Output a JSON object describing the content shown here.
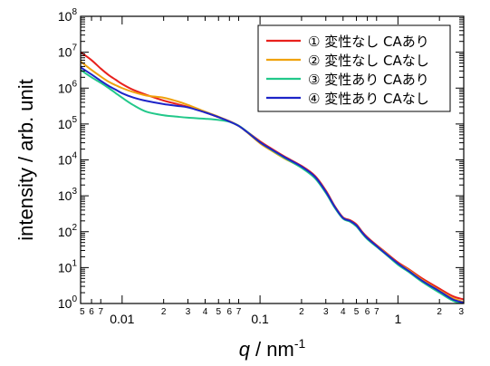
{
  "chart_data": {
    "type": "line",
    "xscale": "log",
    "yscale": "log",
    "xlim": [
      0.005,
      3
    ],
    "ylim": [
      1,
      100000000
    ],
    "grid": false,
    "legend_position": "top-right",
    "xlabel_italic": "q",
    "xlabel_rest": " / nm",
    "xlabel_sup": "-1",
    "ylabel": "intensity / arb. unit",
    "x_ticks_major": [
      {
        "value": 0.01,
        "label": "0.01"
      },
      {
        "value": 0.1,
        "label": "0.1"
      },
      {
        "value": 1,
        "label": "1"
      }
    ],
    "x_ticks_minor": [
      {
        "value": 0.005,
        "label": "5"
      },
      {
        "value": 0.006,
        "label": "6"
      },
      {
        "value": 0.007,
        "label": "7"
      },
      {
        "value": 0.02,
        "label": "2"
      },
      {
        "value": 0.03,
        "label": "3"
      },
      {
        "value": 0.04,
        "label": "4"
      },
      {
        "value": 0.05,
        "label": "5"
      },
      {
        "value": 0.06,
        "label": "6"
      },
      {
        "value": 0.07,
        "label": "7"
      },
      {
        "value": 0.2,
        "label": "2"
      },
      {
        "value": 0.3,
        "label": "3"
      },
      {
        "value": 0.4,
        "label": "4"
      },
      {
        "value": 0.5,
        "label": "5"
      },
      {
        "value": 0.6,
        "label": "6"
      },
      {
        "value": 0.7,
        "label": "7"
      },
      {
        "value": 2,
        "label": "2"
      },
      {
        "value": 3,
        "label": "3"
      }
    ],
    "y_ticks": [
      {
        "exp": 0,
        "base": "10",
        "sup": "0"
      },
      {
        "exp": 1,
        "base": "10",
        "sup": "1"
      },
      {
        "exp": 2,
        "base": "10",
        "sup": "2"
      },
      {
        "exp": 3,
        "base": "10",
        "sup": "3"
      },
      {
        "exp": 4,
        "base": "10",
        "sup": "4"
      },
      {
        "exp": 5,
        "base": "10",
        "sup": "5"
      },
      {
        "exp": 6,
        "base": "10",
        "sup": "6"
      },
      {
        "exp": 7,
        "base": "10",
        "sup": "7"
      },
      {
        "exp": 8,
        "base": "10",
        "sup": "8"
      }
    ],
    "series": [
      {
        "name": "① 変性なし CAあり",
        "color": "#e8211d",
        "x": [
          0.005,
          0.006,
          0.007,
          0.008,
          0.009,
          0.01,
          0.012,
          0.015,
          0.02,
          0.025,
          0.03,
          0.04,
          0.05,
          0.06,
          0.07,
          0.08,
          0.1,
          0.12,
          0.15,
          0.2,
          0.25,
          0.3,
          0.35,
          0.4,
          0.45,
          0.5,
          0.55,
          0.6,
          0.7,
          0.8,
          1,
          1.2,
          1.5,
          2,
          2.5,
          3
        ],
        "y": [
          10000000,
          6000000,
          3500000,
          2300000,
          1700000,
          1300000,
          900000,
          650000,
          450000,
          360000,
          300000,
          210000,
          155000,
          120000,
          90000,
          62000,
          33000,
          21000,
          12500,
          6800,
          3600,
          1400,
          500,
          250,
          210,
          160,
          100,
          70,
          42,
          28,
          14,
          9,
          5,
          2.6,
          1.6,
          1.3
        ]
      },
      {
        "name": "② 変性なし CAなし",
        "color": "#f0a20e",
        "x": [
          0.005,
          0.006,
          0.007,
          0.008,
          0.009,
          0.01,
          0.012,
          0.015,
          0.02,
          0.025,
          0.03,
          0.04,
          0.05,
          0.06,
          0.07,
          0.08,
          0.1,
          0.12,
          0.15,
          0.2,
          0.25,
          0.3,
          0.35,
          0.4,
          0.45,
          0.5,
          0.55,
          0.6,
          0.7,
          0.8,
          1,
          1.2,
          1.5,
          2,
          2.5,
          3
        ],
        "y": [
          5500000,
          3200000,
          2100000,
          1500000,
          1200000,
          1000000,
          780000,
          620000,
          540000,
          430000,
          340000,
          220000,
          160000,
          118000,
          88000,
          60000,
          29000,
          18500,
          11000,
          6200,
          3300,
          1300,
          480,
          240,
          200,
          150,
          95,
          66,
          40,
          27,
          13,
          8.5,
          4.5,
          2.3,
          1.4,
          1.1
        ]
      },
      {
        "name": "③ 変性あり CAあり",
        "color": "#22c88a",
        "x": [
          0.005,
          0.006,
          0.007,
          0.008,
          0.009,
          0.01,
          0.012,
          0.015,
          0.02,
          0.025,
          0.03,
          0.04,
          0.05,
          0.06,
          0.07,
          0.08,
          0.1,
          0.12,
          0.15,
          0.2,
          0.25,
          0.3,
          0.35,
          0.4,
          0.45,
          0.5,
          0.55,
          0.6,
          0.7,
          0.8,
          1,
          1.2,
          1.5,
          2,
          2.5,
          3
        ],
        "y": [
          3200000,
          2000000,
          1400000,
          1000000,
          720000,
          540000,
          340000,
          220000,
          175000,
          160000,
          150000,
          140000,
          130000,
          115000,
          90000,
          62000,
          31000,
          19500,
          11500,
          6000,
          3100,
          1200,
          450,
          230,
          190,
          140,
          90,
          62,
          38,
          25,
          12,
          7.5,
          4,
          2,
          1.2,
          0.95
        ]
      },
      {
        "name": "④ 変性あり CAなし",
        "color": "#1d24c8",
        "x": [
          0.005,
          0.006,
          0.007,
          0.008,
          0.009,
          0.01,
          0.012,
          0.015,
          0.02,
          0.025,
          0.03,
          0.04,
          0.05,
          0.06,
          0.07,
          0.08,
          0.1,
          0.12,
          0.15,
          0.2,
          0.25,
          0.3,
          0.35,
          0.4,
          0.45,
          0.5,
          0.55,
          0.6,
          0.7,
          0.8,
          1,
          1.2,
          1.5,
          2,
          2.5,
          3
        ],
        "y": [
          3800000,
          2400000,
          1600000,
          1150000,
          900000,
          720000,
          550000,
          440000,
          360000,
          320000,
          290000,
          210000,
          155000,
          117000,
          88000,
          61000,
          31000,
          20000,
          12000,
          6500,
          3400,
          1300,
          480,
          240,
          200,
          150,
          95,
          66,
          40,
          26,
          13,
          8,
          4.3,
          2.2,
          1.3,
          1.05
        ]
      }
    ]
  }
}
